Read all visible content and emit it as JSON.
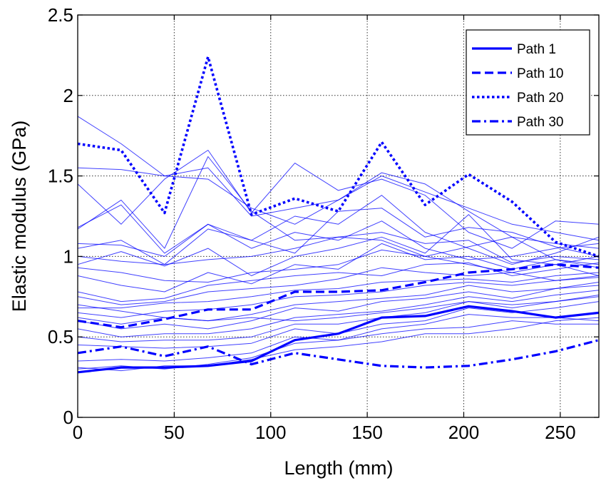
{
  "chart_data": {
    "type": "line",
    "xlabel": "Length (mm)",
    "ylabel": "Elastic modulus (GPa)",
    "xlim": [
      0,
      270
    ],
    "ylim": [
      0,
      2.5
    ],
    "x_ticks": [
      "0",
      "50",
      "100",
      "150",
      "200",
      "250"
    ],
    "y_ticks": [
      "0",
      "0.5",
      "1",
      "1.5",
      "2",
      "2.5"
    ],
    "grid": true,
    "legend_position": "top-right",
    "series_color": "#0000ff",
    "x": [
      0,
      22.5,
      45,
      67.5,
      90,
      112.5,
      135,
      157.5,
      180,
      202.5,
      225,
      247.5,
      270
    ],
    "series": [
      {
        "name": "Path 1",
        "style": "solid-thick",
        "values": [
          0.28,
          0.31,
          0.31,
          0.32,
          0.35,
          0.48,
          0.52,
          0.62,
          0.63,
          0.69,
          0.66,
          0.62,
          0.65
        ]
      },
      {
        "name": "Path 10",
        "style": "dashed-thick",
        "values": [
          0.6,
          0.56,
          0.61,
          0.67,
          0.67,
          0.78,
          0.78,
          0.79,
          0.84,
          0.9,
          0.92,
          0.95,
          0.93
        ]
      },
      {
        "name": "Path 20",
        "style": "dotted-thick",
        "values": [
          1.7,
          1.66,
          1.27,
          2.24,
          1.26,
          1.36,
          1.28,
          1.71,
          1.32,
          1.51,
          1.34,
          1.09,
          1.0
        ]
      },
      {
        "name": "Path 30",
        "style": "dashdot-thick",
        "values": [
          0.4,
          0.44,
          0.38,
          0.44,
          0.33,
          0.4,
          0.36,
          0.32,
          0.31,
          0.32,
          0.36,
          0.41,
          0.48
        ]
      },
      {
        "style": "thin",
        "values": [
          1.87,
          1.7,
          1.5,
          1.55,
          1.25,
          1.3,
          1.35,
          1.5,
          1.4,
          1.3,
          1.2,
          1.15,
          1.1
        ]
      },
      {
        "style": "thin",
        "values": [
          1.55,
          1.54,
          1.5,
          1.48,
          1.3,
          1.2,
          1.35,
          1.52,
          1.45,
          1.28,
          1.12,
          1.08,
          1.05
        ]
      },
      {
        "style": "thin",
        "values": [
          1.45,
          1.2,
          1.48,
          1.66,
          1.27,
          1.58,
          1.41,
          1.48,
          1.38,
          1.15,
          1.05,
          1.22,
          1.2
        ]
      },
      {
        "style": "thin",
        "values": [
          1.18,
          1.32,
          1.02,
          1.2,
          1.1,
          1.25,
          1.2,
          1.38,
          1.15,
          1.05,
          0.95,
          1.02,
          1.12
        ]
      },
      {
        "style": "thin",
        "values": [
          1.17,
          1.35,
          1.05,
          1.62,
          1.28,
          1.1,
          1.12,
          1.1,
          1.0,
          1.06,
          1.12,
          0.98,
          0.95
        ]
      },
      {
        "style": "thin",
        "values": [
          1.08,
          1.07,
          1.0,
          1.2,
          1.05,
          1.15,
          1.1,
          1.22,
          1.05,
          0.98,
          1.0,
          1.05,
          1.08
        ]
      },
      {
        "style": "thin",
        "values": [
          1.05,
          1.1,
          0.95,
          1.17,
          1.1,
          1.02,
          1.28,
          1.3,
          1.12,
          1.18,
          1.15,
          1.06,
          1.0
        ]
      },
      {
        "style": "thin",
        "values": [
          0.95,
          1.03,
          0.94,
          1.05,
          0.88,
          1.0,
          1.05,
          1.12,
          1.02,
          1.26,
          0.98,
          0.95,
          0.88
        ]
      },
      {
        "style": "thin",
        "values": [
          0.88,
          0.82,
          0.78,
          0.9,
          0.83,
          0.95,
          0.92,
          1.08,
          0.98,
          1.0,
          0.92,
          0.98,
          0.93
        ]
      },
      {
        "style": "thin",
        "values": [
          0.78,
          0.72,
          0.74,
          0.82,
          0.85,
          0.88,
          0.9,
          0.88,
          0.95,
          0.96,
          0.88,
          0.92,
          0.96
        ]
      },
      {
        "style": "thin",
        "values": [
          0.75,
          0.7,
          0.72,
          0.78,
          0.8,
          0.82,
          0.86,
          0.93,
          0.9,
          0.88,
          0.9,
          0.85,
          0.88
        ]
      },
      {
        "style": "thin",
        "values": [
          0.68,
          0.68,
          0.71,
          0.72,
          0.75,
          0.79,
          0.8,
          0.84,
          0.85,
          0.86,
          0.84,
          0.88,
          0.9
        ]
      },
      {
        "style": "thin",
        "values": [
          0.65,
          0.62,
          0.66,
          0.67,
          0.7,
          0.75,
          0.76,
          0.78,
          0.82,
          0.84,
          0.82,
          0.85,
          0.87
        ]
      },
      {
        "style": "thin",
        "values": [
          0.62,
          0.58,
          0.62,
          0.6,
          0.64,
          0.7,
          0.72,
          0.74,
          0.76,
          0.82,
          0.78,
          0.8,
          0.84
        ]
      },
      {
        "style": "thin",
        "values": [
          0.6,
          0.55,
          0.58,
          0.55,
          0.6,
          0.68,
          0.66,
          0.72,
          0.74,
          0.78,
          0.74,
          0.8,
          0.82
        ]
      },
      {
        "style": "thin",
        "values": [
          0.55,
          0.5,
          0.52,
          0.52,
          0.55,
          0.62,
          0.64,
          0.66,
          0.7,
          0.75,
          0.72,
          0.76,
          0.79
        ]
      },
      {
        "style": "thin",
        "values": [
          0.5,
          0.47,
          0.48,
          0.48,
          0.5,
          0.58,
          0.58,
          0.62,
          0.65,
          0.72,
          0.7,
          0.72,
          0.75
        ]
      },
      {
        "style": "thin",
        "values": [
          0.45,
          0.44,
          0.43,
          0.44,
          0.46,
          0.55,
          0.52,
          0.58,
          0.6,
          0.68,
          0.65,
          0.68,
          0.72
        ]
      },
      {
        "style": "thin",
        "values": [
          0.35,
          0.36,
          0.35,
          0.37,
          0.4,
          0.5,
          0.48,
          0.55,
          0.58,
          0.64,
          0.62,
          0.62,
          0.6
        ]
      },
      {
        "style": "thin",
        "values": [
          0.3,
          0.32,
          0.3,
          0.33,
          0.37,
          0.46,
          0.48,
          0.52,
          0.55,
          0.56,
          0.6,
          0.58,
          0.58
        ]
      },
      {
        "style": "thin",
        "values": [
          0.31,
          0.29,
          0.32,
          0.32,
          0.36,
          0.42,
          0.44,
          0.47,
          0.52,
          0.52,
          0.55,
          0.6,
          0.62
        ]
      },
      {
        "style": "thin",
        "values": [
          0.7,
          0.66,
          0.62,
          0.6,
          0.62,
          0.6,
          0.62,
          0.65,
          0.68,
          0.72,
          0.68,
          0.72,
          0.76
        ]
      },
      {
        "style": "thin",
        "values": [
          0.93,
          0.9,
          0.85,
          0.84,
          0.9,
          0.92,
          0.95,
          1.04,
          1.0,
          0.95,
          0.9,
          0.95,
          1.0
        ]
      },
      {
        "style": "thin",
        "values": [
          1.0,
          0.97,
          0.95,
          0.98,
          1.0,
          1.05,
          1.12,
          1.15,
          1.08,
          1.1,
          0.96,
          1.0,
          0.98
        ]
      }
    ]
  }
}
